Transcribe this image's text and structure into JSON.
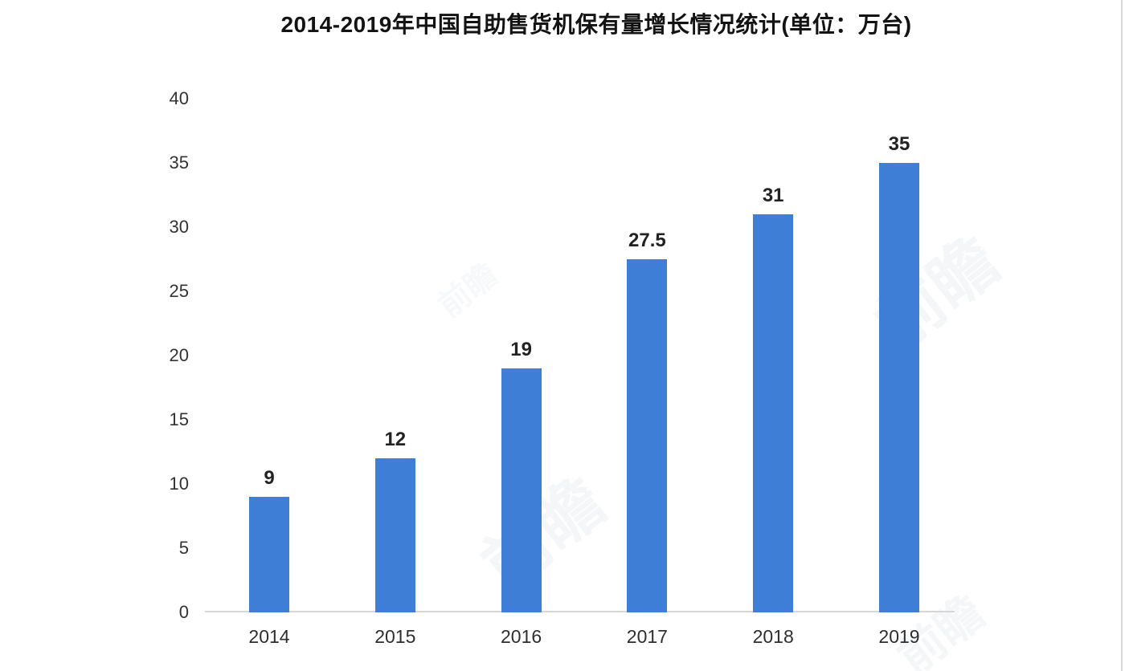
{
  "title": "2014-2019年中国自助售货机保有量增长情况统计(单位：万台)",
  "chart_data": {
    "type": "bar",
    "title": "2014-2019年中国自助售货机保有量增长情况统计(单位：万台)",
    "categories": [
      "2014",
      "2015",
      "2016",
      "2017",
      "2018",
      "2019"
    ],
    "values": [
      9,
      12,
      19,
      27.5,
      31,
      35
    ],
    "value_labels": [
      "9",
      "12",
      "19",
      "27.5",
      "31",
      "35"
    ],
    "xlabel": "",
    "ylabel": "",
    "unit": "万台",
    "ylim": [
      0,
      40
    ],
    "yticks": [
      0,
      5,
      10,
      15,
      20,
      25,
      30,
      35,
      40
    ],
    "grid": false,
    "legend": false,
    "bar_color": "#3e7ed7"
  },
  "colors": {
    "bar": "#3e7ed7",
    "axis_line": "#d6d6d6",
    "title_text": "#131313",
    "tick_text": "#333333",
    "background": "#ffffff"
  },
  "watermark": {
    "text": "前瞻"
  }
}
